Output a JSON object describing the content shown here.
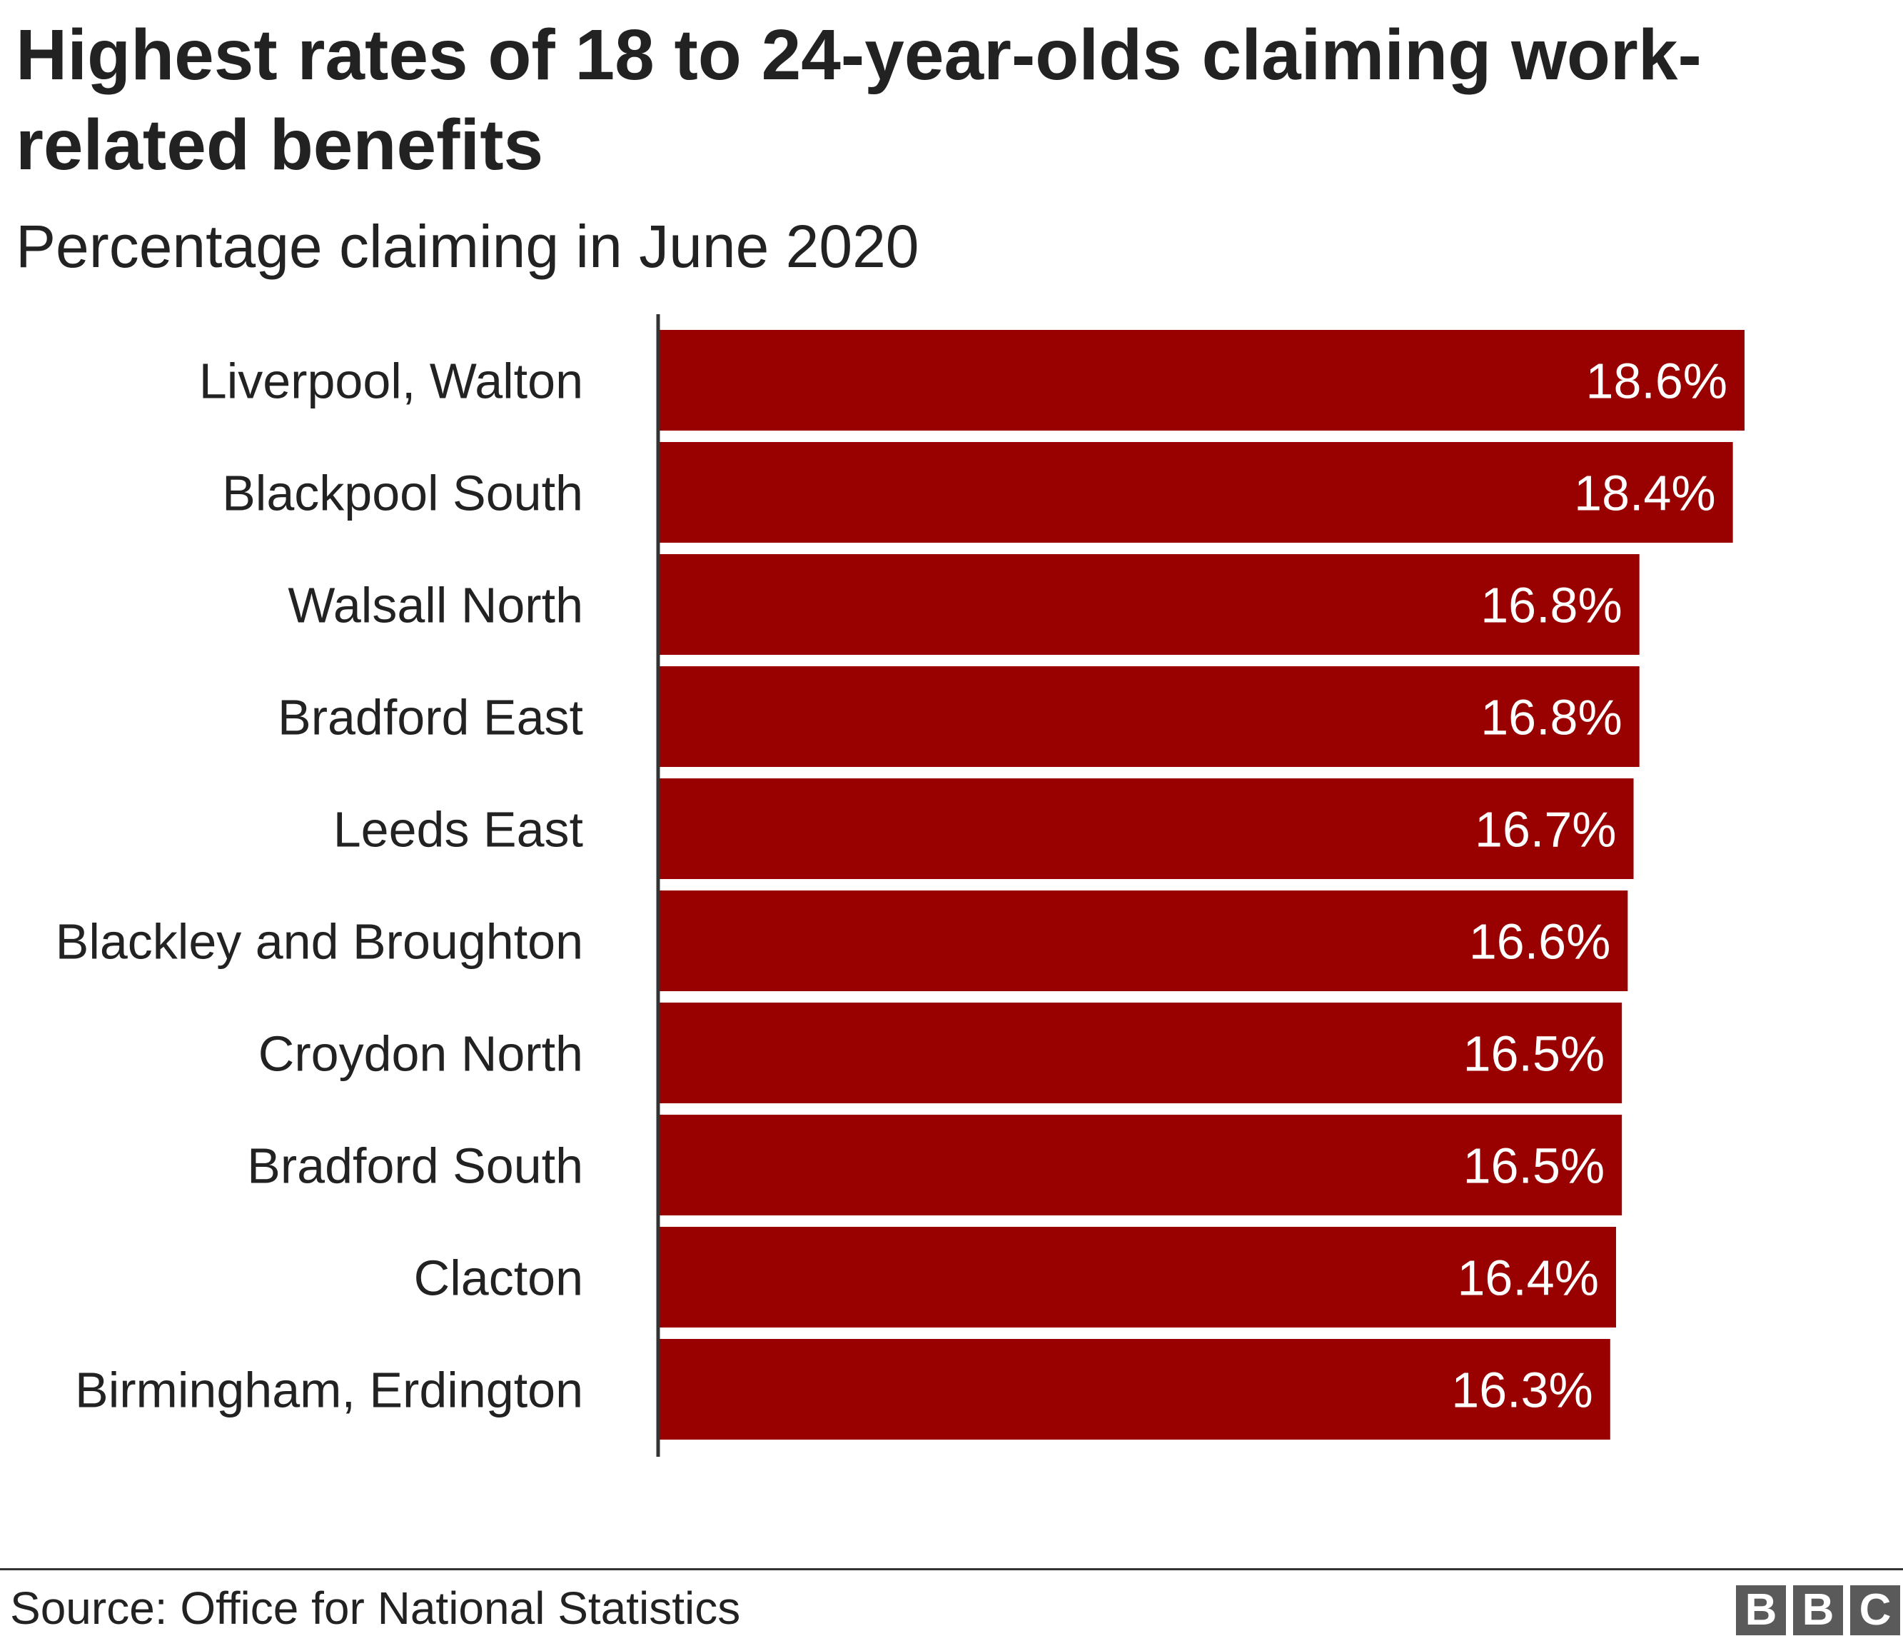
{
  "title": "Highest rates of 18 to 24-year-olds claiming work-related benefits",
  "subtitle": "Percentage claiming in June 2020",
  "chart_data": {
    "type": "bar",
    "orientation": "horizontal",
    "title": "Highest rates of 18 to 24-year-olds claiming work-related benefits",
    "subtitle": "Percentage claiming in June 2020",
    "xlabel": "",
    "ylabel": "",
    "xlim": [
      0,
      18.6
    ],
    "grid": false,
    "categories": [
      "Liverpool, Walton",
      "Blackpool South",
      "Walsall North",
      "Bradford East",
      "Leeds East",
      "Blackley and Broughton",
      "Croydon North",
      "Bradford South",
      "Clacton",
      "Birmingham, Erdington"
    ],
    "values": [
      18.6,
      18.4,
      16.8,
      16.8,
      16.7,
      16.6,
      16.5,
      16.5,
      16.4,
      16.3
    ],
    "value_labels": [
      "18.6%",
      "18.4%",
      "16.8%",
      "16.8%",
      "16.7%",
      "16.6%",
      "16.5%",
      "16.5%",
      "16.4%",
      "16.3%"
    ],
    "bar_color": "#990000"
  },
  "footer": {
    "source": "Source: Office for National Statistics",
    "logo_letters": [
      "B",
      "B",
      "C"
    ]
  }
}
